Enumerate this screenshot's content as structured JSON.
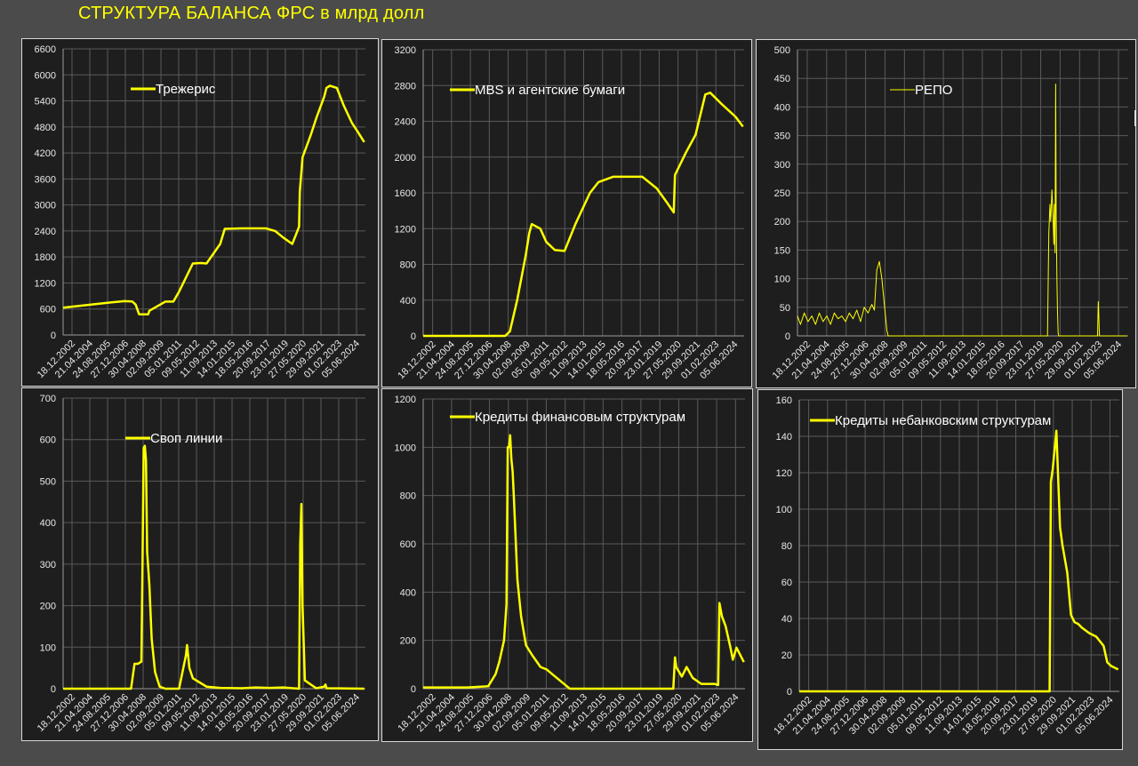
{
  "page": {
    "title": "СТРУКТУРА БАЛАНСА ФРС в млрд долл"
  },
  "colors": {
    "background": "#4b4b4b",
    "plot_background": "#1e1e1e",
    "series": "#ffff00",
    "grid": "#5a5a5a",
    "tick_text": "#e8e8e8",
    "legend_text": "#ffffff"
  },
  "chart_data": [
    {
      "id": "treasuries",
      "type": "line",
      "title": "",
      "xlabel": "",
      "ylabel": "",
      "ylim": [
        0,
        6600
      ],
      "yticks": [
        0,
        600,
        1200,
        1800,
        2400,
        3000,
        3600,
        4200,
        4800,
        5400,
        6000,
        6600
      ],
      "xticks": [
        "18.12.2002",
        "21.04.2004",
        "24.08.2005",
        "27.12.2006",
        "30.04.2008",
        "02.09.2009",
        "05.01.2011",
        "09.05.2012",
        "11.09.2013",
        "14.01.2015",
        "18.05.2016",
        "20.09.2017",
        "23.01.2019",
        "27.05.2020",
        "29.09.2021",
        "01.02.2023",
        "05.06.2024"
      ],
      "xlim": [
        "2002-12-18",
        "2024-12-31"
      ],
      "grid": true,
      "legend_position": "top-left",
      "series": [
        {
          "name": "Трежерис",
          "linewidth": 2.5,
          "x": [
            "2002-12-18",
            "2004-06-01",
            "2006-06-01",
            "2007-06-01",
            "2008-01-01",
            "2008-04-01",
            "2008-07-01",
            "2009-01-01",
            "2009-03-01",
            "2009-04-01",
            "2010-06-01",
            "2011-01-01",
            "2011-06-01",
            "2012-06-01",
            "2013-01-01",
            "2013-06-01",
            "2014-06-01",
            "2014-10-01",
            "2016-01-01",
            "2017-10-01",
            "2018-06-01",
            "2019-01-01",
            "2019-09-01",
            "2019-12-01",
            "2020-03-01",
            "2020-03-20",
            "2020-06-01",
            "2021-01-01",
            "2021-06-01",
            "2022-01-01",
            "2022-03-01",
            "2022-06-01",
            "2022-12-01",
            "2023-06-01",
            "2024-01-01",
            "2024-06-01",
            "2024-12-01"
          ],
          "y": [
            630,
            680,
            750,
            780,
            775,
            700,
            480,
            475,
            480,
            560,
            770,
            770,
            1000,
            1650,
            1660,
            1650,
            2100,
            2450,
            2460,
            2460,
            2400,
            2250,
            2100,
            2300,
            2500,
            3300,
            4100,
            4600,
            5000,
            5500,
            5700,
            5750,
            5700,
            5300,
            4900,
            4700,
            4450
          ]
        }
      ]
    },
    {
      "id": "mbs",
      "type": "line",
      "title": "",
      "xlabel": "",
      "ylabel": "",
      "ylim": [
        0,
        3200
      ],
      "yticks": [
        0,
        400,
        800,
        1200,
        1600,
        2000,
        2400,
        2800,
        3200
      ],
      "xticks": [
        "18.12.2002",
        "21.04.2004",
        "24.08.2005",
        "27.12.2006",
        "30.04.2008",
        "02.09.2009",
        "05.01.2011",
        "09.05.2012",
        "11.09.2013",
        "14.01.2015",
        "18.05.2016",
        "20.09.2017",
        "23.01.2019",
        "27.05.2020",
        "29.09.2021",
        "01.02.2023",
        "05.06.2024"
      ],
      "xlim": [
        "2002-12-18",
        "2024-12-31"
      ],
      "grid": true,
      "legend_position": "top-left",
      "series": [
        {
          "name": "MBS и агентские бумаги",
          "linewidth": 2.5,
          "x": [
            "2002-12-18",
            "2008-08-01",
            "2008-12-01",
            "2009-06-01",
            "2010-01-01",
            "2010-04-01",
            "2010-06-01",
            "2011-01-01",
            "2011-06-01",
            "2012-01-01",
            "2012-09-01",
            "2013-06-01",
            "2014-06-01",
            "2015-01-01",
            "2016-01-01",
            "2017-01-01",
            "2018-01-01",
            "2019-01-01",
            "2019-09-01",
            "2020-03-01",
            "2020-04-01",
            "2021-01-01",
            "2021-09-01",
            "2022-05-01",
            "2022-09-01",
            "2023-06-01",
            "2024-06-01",
            "2024-12-01"
          ],
          "y": [
            0,
            0,
            50,
            400,
            900,
            1150,
            1250,
            1200,
            1050,
            960,
            950,
            1250,
            1600,
            1720,
            1780,
            1780,
            1780,
            1650,
            1500,
            1380,
            1800,
            2050,
            2250,
            2700,
            2720,
            2600,
            2450,
            2340
          ]
        }
      ]
    },
    {
      "id": "repo",
      "type": "line",
      "title": "",
      "xlabel": "",
      "ylabel": "",
      "ylim": [
        0,
        500
      ],
      "yticks": [
        0,
        50,
        100,
        150,
        200,
        250,
        300,
        350,
        400,
        450,
        500
      ],
      "xticks": [
        "18.12.2002",
        "21.04.2004",
        "24.08.2005",
        "27.12.2006",
        "30.04.2008",
        "02.09.2009",
        "05.01.2011",
        "09.05.2012",
        "11.09.2013",
        "14.01.2015",
        "18.05.2016",
        "20.09.2017",
        "23.01.2019",
        "27.05.2020",
        "29.09.2021",
        "01.02.2023",
        "05.06.2024"
      ],
      "xlim": [
        "2002-12-18",
        "2024-12-31"
      ],
      "grid": true,
      "legend_position": "top-center",
      "series": [
        {
          "name": "РЕПО",
          "linewidth": 1,
          "x": [
            "2002-12-18",
            "2003-03-01",
            "2003-06-01",
            "2003-09-01",
            "2003-12-01",
            "2004-03-01",
            "2004-06-01",
            "2004-09-01",
            "2004-12-01",
            "2005-03-01",
            "2005-06-01",
            "2005-09-01",
            "2005-12-01",
            "2006-03-01",
            "2006-06-01",
            "2006-09-01",
            "2006-12-01",
            "2007-03-01",
            "2007-06-01",
            "2007-09-01",
            "2007-12-01",
            "2008-02-01",
            "2008-04-01",
            "2008-06-01",
            "2008-08-01",
            "2008-10-01",
            "2008-12-01",
            "2009-01-01",
            "2019-08-15",
            "2019-09-17",
            "2019-10-15",
            "2019-11-01",
            "2019-12-01",
            "2019-12-31",
            "2020-01-15",
            "2020-02-01",
            "2020-02-15",
            "2020-03-01",
            "2020-03-15",
            "2020-04-01",
            "2020-04-15",
            "2020-05-01",
            "2020-05-15",
            "2020-06-01",
            "2020-07-01",
            "2022-11-01",
            "2022-12-15",
            "2023-01-01",
            "2023-02-01",
            "2024-12-01"
          ],
          "y": [
            35,
            20,
            40,
            25,
            35,
            20,
            40,
            25,
            35,
            20,
            40,
            30,
            35,
            25,
            40,
            30,
            45,
            25,
            50,
            40,
            55,
            45,
            115,
            130,
            100,
            55,
            10,
            0,
            0,
            180,
            230,
            200,
            255,
            200,
            160,
            230,
            145,
            440,
            210,
            100,
            40,
            5,
            0,
            0,
            0,
            0,
            0,
            60,
            0,
            0
          ]
        }
      ]
    },
    {
      "id": "swap_lines",
      "type": "line",
      "title": "",
      "xlabel": "",
      "ylabel": "",
      "ylim": [
        0,
        700
      ],
      "yticks": [
        0,
        100,
        200,
        300,
        400,
        500,
        600,
        700
      ],
      "xticks": [
        "18.12.2002",
        "21.04.2004",
        "24.08.2005",
        "27.12.2006",
        "30.04.2008",
        "02.09.2009",
        "05.01.2011",
        "09.05.2012",
        "11.09.2013",
        "14.01.2015",
        "18.05.2016",
        "20.09.2017",
        "23.01.2019",
        "27.05.2020",
        "29.09.2021",
        "01.02.2023",
        "05.06.2024"
      ],
      "xlim": [
        "2002-12-18",
        "2024-12-31"
      ],
      "grid": true,
      "legend_position": "top-left",
      "series": [
        {
          "name": "Своп линии",
          "linewidth": 2.5,
          "x": [
            "2002-12-18",
            "2007-12-01",
            "2008-01-01",
            "2008-03-01",
            "2008-06-01",
            "2008-09-01",
            "2008-10-01",
            "2008-11-01",
            "2008-12-01",
            "2009-01-01",
            "2009-02-01",
            "2009-04-01",
            "2009-06-01",
            "2009-09-01",
            "2010-01-01",
            "2010-06-01",
            "2011-06-01",
            "2011-12-01",
            "2012-01-01",
            "2012-03-01",
            "2012-06-01",
            "2012-12-01",
            "2013-06-01",
            "2014-06-01",
            "2016-01-01",
            "2017-01-01",
            "2018-01-01",
            "2019-01-01",
            "2020-03-01",
            "2020-04-01",
            "2020-05-01",
            "2020-06-01",
            "2020-08-01",
            "2021-06-01",
            "2022-01-01",
            "2022-02-01",
            "2022-03-01",
            "2024-12-01"
          ],
          "y": [
            0,
            0,
            20,
            60,
            60,
            65,
            300,
            580,
            585,
            550,
            330,
            250,
            120,
            40,
            5,
            0,
            0,
            80,
            105,
            50,
            25,
            15,
            5,
            2,
            1,
            3,
            2,
            3,
            0,
            350,
            445,
            200,
            20,
            1,
            5,
            10,
            1,
            0
          ]
        }
      ]
    },
    {
      "id": "loans_financial",
      "type": "line",
      "title": "",
      "xlabel": "",
      "ylabel": "",
      "ylim": [
        0,
        1200
      ],
      "yticks": [
        0,
        200,
        400,
        600,
        800,
        1000,
        1200
      ],
      "xticks": [
        "18.12.2002",
        "21.04.2004",
        "24.08.2005",
        "27.12.2006",
        "30.04.2008",
        "02.09.2009",
        "05.01.2011",
        "09.05.2012",
        "11.09.2013",
        "14.01.2015",
        "18.05.2016",
        "20.09.2017",
        "23.01.2019",
        "27.05.2020",
        "29.09.2021",
        "01.02.2023",
        "05.06.2024"
      ],
      "xlim": [
        "2002-12-18",
        "2024-12-31"
      ],
      "grid": true,
      "legend_position": "top-left",
      "series": [
        {
          "name": "Кредиты финансовым структурам",
          "linewidth": 2.5,
          "x": [
            "2002-12-18",
            "2006-01-01",
            "2007-06-01",
            "2007-12-01",
            "2008-03-01",
            "2008-07-01",
            "2008-09-01",
            "2008-10-01",
            "2008-11-01",
            "2008-12-01",
            "2009-01-01",
            "2009-02-01",
            "2009-03-01",
            "2009-06-01",
            "2009-09-01",
            "2010-01-01",
            "2010-06-01",
            "2011-01-01",
            "2011-06-01",
            "2012-01-01",
            "2013-01-01",
            "2013-06-01",
            "2019-12-01",
            "2020-02-01",
            "2020-03-15",
            "2020-04-15",
            "2020-09-01",
            "2021-01-01",
            "2021-06-01",
            "2022-01-01",
            "2022-12-01",
            "2023-03-01",
            "2023-04-01",
            "2023-06-01",
            "2023-09-01",
            "2024-01-01",
            "2024-03-01",
            "2024-06-01",
            "2024-12-01"
          ],
          "y": [
            5,
            5,
            10,
            60,
            110,
            200,
            350,
            1000,
            1000,
            1050,
            950,
            900,
            800,
            450,
            300,
            180,
            140,
            90,
            80,
            50,
            0,
            0,
            0,
            0,
            130,
            90,
            50,
            90,
            45,
            20,
            20,
            15,
            355,
            300,
            260,
            170,
            120,
            170,
            110
          ]
        }
      ]
    },
    {
      "id": "loans_nonbank",
      "type": "line",
      "title": "",
      "xlabel": "",
      "ylabel": "",
      "ylim": [
        0,
        160
      ],
      "yticks": [
        0,
        20,
        40,
        60,
        80,
        100,
        120,
        140,
        160
      ],
      "xticks": [
        "18.12.2002",
        "21.04.2004",
        "24.08.2005",
        "27.12.2006",
        "30.04.2008",
        "02.09.2009",
        "05.01.2011",
        "09.05.2012",
        "11.09.2013",
        "14.01.2015",
        "18.05.2016",
        "20.09.2017",
        "23.01.2019",
        "27.05.2020",
        "29.09.2021",
        "01.02.2023",
        "05.06.2024"
      ],
      "xlim": [
        "2002-12-18",
        "2024-12-31"
      ],
      "grid": true,
      "legend_position": "top-left",
      "series": [
        {
          "name": "Кредиты небанковским структурам",
          "linewidth": 2.5,
          "x": [
            "2002-12-18",
            "2020-03-15",
            "2020-04-15",
            "2020-06-01",
            "2020-09-01",
            "2020-12-01",
            "2021-01-01",
            "2021-02-01",
            "2021-06-01",
            "2021-09-01",
            "2021-12-01",
            "2022-03-01",
            "2022-06-01",
            "2022-12-01",
            "2023-06-01",
            "2023-12-01",
            "2024-03-01",
            "2024-06-01",
            "2024-12-01"
          ],
          "y": [
            0,
            0,
            115,
            122,
            143,
            90,
            85,
            80,
            65,
            42,
            38,
            37,
            35,
            32,
            30,
            25,
            16,
            14,
            12
          ]
        }
      ]
    }
  ]
}
